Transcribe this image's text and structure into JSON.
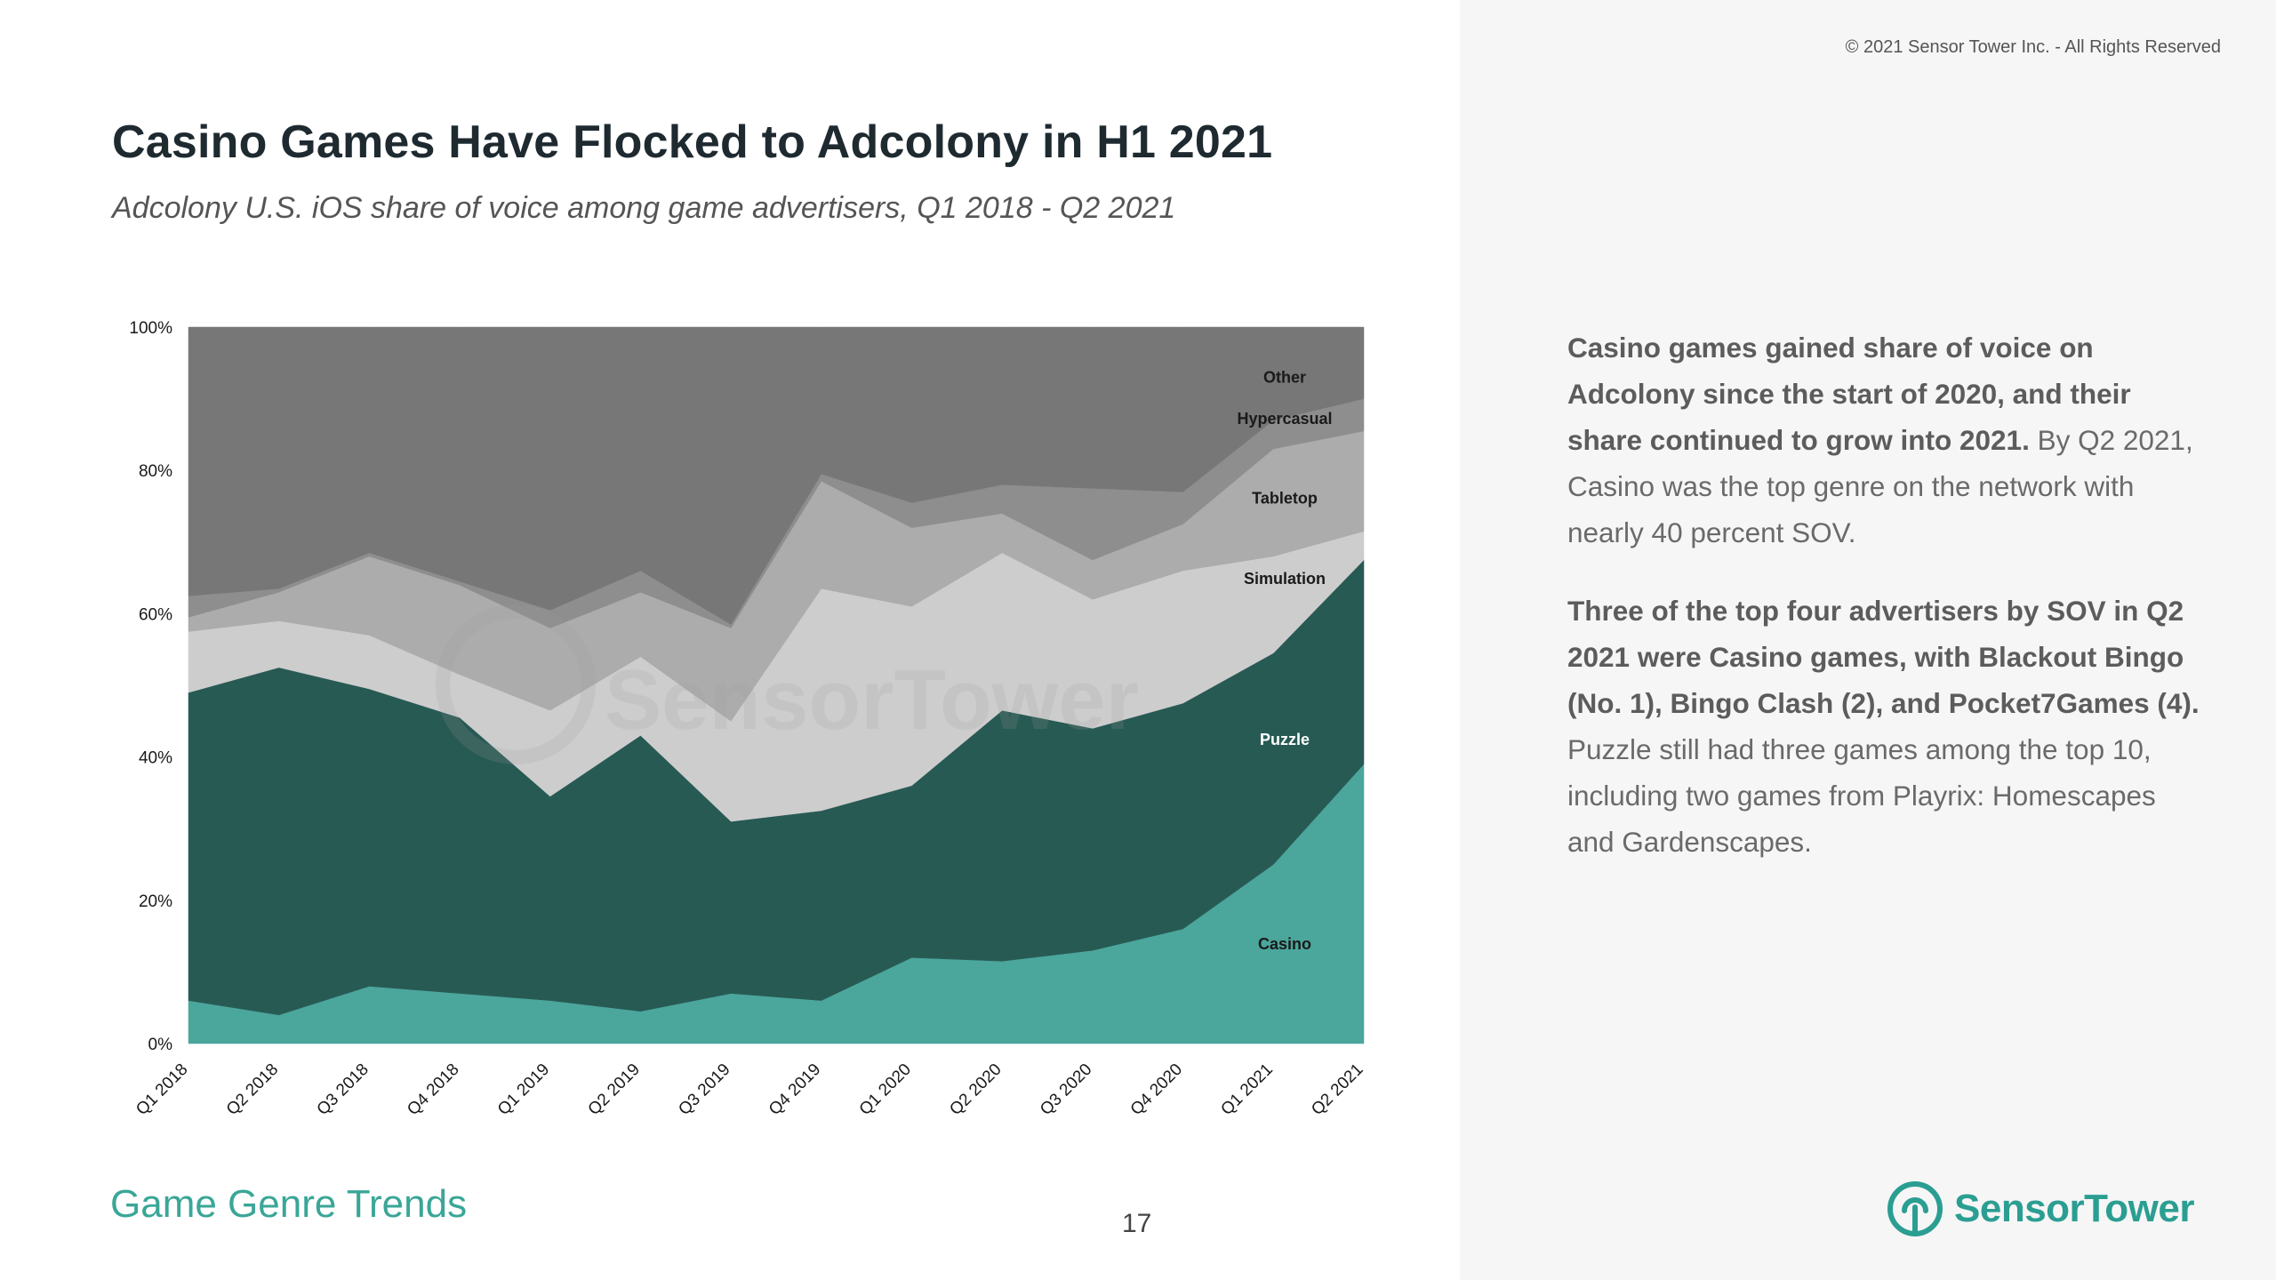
{
  "header": {
    "copyright": "© 2021 Sensor Tower Inc. - All Rights Reserved",
    "title": "Casino Games Have Flocked to Adcolony in H1 2021",
    "subtitle": "Adcolony U.S. iOS share of voice among game advertisers, Q1 2018 - Q2 2021"
  },
  "footer": {
    "section": "Game Genre Trends",
    "page_number": "17"
  },
  "logo": {
    "text": "SensorTower",
    "icon": "sensor-tower-logo-icon"
  },
  "watermark": {
    "text": "SensorTower"
  },
  "side": {
    "p1_bold": "Casino games gained share of voice on Adcolony since the start of 2020, and their share continued to grow into 2021.",
    "p1_text": " By Q2 2021, Casino was the top genre on the network with nearly 40 percent SOV.",
    "p2_bold": "Three of the top four advertisers by SOV in Q2 2021 were Casino games, with Blackout Bingo (No. 1), Bingo Clash (2), and Pocket7Games (4).",
    "p2_text": " Puzzle still had three games among the top 10, including two games from Playrix: Homescapes and Gardenscapes."
  },
  "colors": {
    "casino": "#4ba69c",
    "puzzle": "#285a54",
    "simulation": "#cdcdcd",
    "tabletop": "#acacac",
    "hypercasual": "#8e8e8e",
    "other": "#777777",
    "footer_accent": "#3aa697",
    "logo": "#2b9e92"
  },
  "chart_data": {
    "type": "area",
    "stacked": true,
    "percent": true,
    "title": "",
    "xlabel": "",
    "ylabel": "",
    "categories": [
      "Q1 2018",
      "Q2 2018",
      "Q3 2018",
      "Q4 2018",
      "Q1 2019",
      "Q2 2019",
      "Q3 2019",
      "Q4 2019",
      "Q1 2020",
      "Q2 2020",
      "Q3 2020",
      "Q4 2020",
      "Q1 2021",
      "Q2 2021"
    ],
    "ylim": [
      0,
      100
    ],
    "yticks": [
      "0%",
      "20%",
      "40%",
      "60%",
      "80%",
      "100%"
    ],
    "series": [
      {
        "name": "Casino",
        "color": "#4ba69c",
        "label_color": "#1a1a1a",
        "values": [
          6,
          4,
          8,
          7,
          6,
          4.5,
          7,
          6,
          12,
          11.5,
          13,
          16,
          25,
          39
        ]
      },
      {
        "name": "Puzzle",
        "color": "#285a54",
        "label_color": "#ffffff",
        "values": [
          43,
          48.5,
          41.5,
          38.5,
          28.5,
          38.5,
          24,
          26.5,
          24,
          35,
          31,
          31.5,
          29.5,
          28.5
        ]
      },
      {
        "name": "Simulation",
        "color": "#cdcdcd",
        "label_color": "#1a1a1a",
        "values": [
          8.5,
          6.5,
          7.5,
          6,
          12,
          11,
          14,
          31,
          25,
          22,
          18,
          18.5,
          13.5,
          4
        ]
      },
      {
        "name": "Tabletop",
        "color": "#acacac",
        "label_color": "#1a1a1a",
        "values": [
          2,
          4,
          11,
          12.5,
          11.5,
          9,
          13,
          15,
          11,
          5.5,
          5.5,
          6.5,
          15,
          14
        ]
      },
      {
        "name": "Hypercasual",
        "color": "#8e8e8e",
        "label_color": "#1a1a1a",
        "values": [
          3,
          0.5,
          0.5,
          0.5,
          2.5,
          3,
          0.5,
          1,
          3.5,
          4,
          10,
          4.5,
          4,
          4.5
        ]
      },
      {
        "name": "Other",
        "color": "#777777",
        "label_color": "#1a1a1a",
        "values": [
          37.5,
          36.5,
          31.5,
          35.5,
          39.5,
          34,
          41.5,
          20.5,
          24.5,
          22,
          22.5,
          23,
          13,
          10
        ]
      }
    ],
    "grid": false,
    "legend": "inline labels at right"
  }
}
